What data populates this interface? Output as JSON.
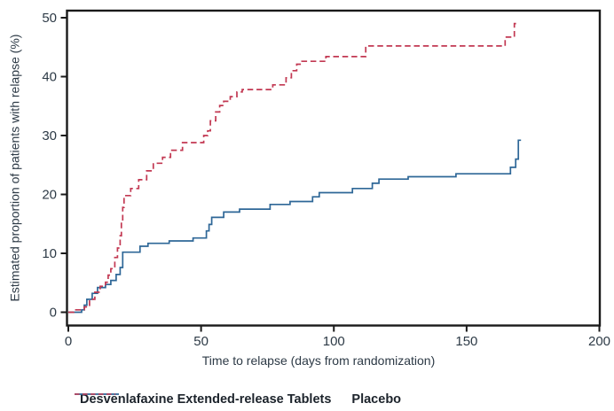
{
  "figure": {
    "y_axis_label": "Estimated proportion of patients with relapse (%)",
    "x_axis_label": "Time to relapse (days from randomization)",
    "legend": {
      "drug_label": "Desvenlafaxine Extended-release Tablets",
      "placebo_label": "Placebo"
    },
    "colors": {
      "drug_line": "#2e6797",
      "placebo_line": "#c23852",
      "frame": "#1a1a1a",
      "text": "#2d3a46"
    }
  },
  "chart_data": {
    "type": "line",
    "subtype": "kaplan-meier-step",
    "title": "",
    "xlabel": "Time to relapse (days from randomization)",
    "ylabel": "Estimated proportion of patients with relapse (%)",
    "xlim": [
      0,
      200
    ],
    "ylim": [
      0,
      50
    ],
    "x_ticks": [
      0,
      50,
      100,
      150,
      200
    ],
    "y_ticks": [
      0,
      10,
      20,
      30,
      40,
      50
    ],
    "grid": false,
    "legend_position": "bottom",
    "series": [
      {
        "name": "Desvenlafaxine Extended-release Tablets",
        "color": "#2e6797",
        "line_style": "solid",
        "end_day": 170.5,
        "points": [
          [
            0,
            0
          ],
          [
            5,
            0.4
          ],
          [
            6,
            1.2
          ],
          [
            7,
            2.2
          ],
          [
            9,
            3.2
          ],
          [
            11,
            4.2
          ],
          [
            14,
            4.7
          ],
          [
            16,
            5.4
          ],
          [
            18,
            6.4
          ],
          [
            19.5,
            7.6
          ],
          [
            20.5,
            10.2
          ],
          [
            27,
            11.2
          ],
          [
            30,
            11.7
          ],
          [
            38,
            12.1
          ],
          [
            47,
            12.6
          ],
          [
            52,
            13.8
          ],
          [
            53,
            14.9
          ],
          [
            54,
            16.1
          ],
          [
            58.5,
            17
          ],
          [
            64.5,
            17.5
          ],
          [
            76,
            18.3
          ],
          [
            83.5,
            18.8
          ],
          [
            92,
            19.6
          ],
          [
            94.5,
            20.3
          ],
          [
            107,
            21
          ],
          [
            114.5,
            21.9
          ],
          [
            117,
            22.6
          ],
          [
            128,
            23
          ],
          [
            146,
            23.5
          ],
          [
            166.5,
            24.6
          ],
          [
            168.5,
            26
          ],
          [
            169.5,
            29.2
          ]
        ]
      },
      {
        "name": "Placebo",
        "color": "#c23852",
        "line_style": "dashed",
        "end_day": 169,
        "points": [
          [
            0,
            0
          ],
          [
            2,
            0.4
          ],
          [
            6,
            0.9
          ],
          [
            8,
            2.2
          ],
          [
            10,
            3.4
          ],
          [
            12,
            4.4
          ],
          [
            14,
            5.1
          ],
          [
            15,
            6.3
          ],
          [
            16,
            7.4
          ],
          [
            17.5,
            9.3
          ],
          [
            18.5,
            10.9
          ],
          [
            19.5,
            13
          ],
          [
            20,
            15.5
          ],
          [
            20.5,
            17.8
          ],
          [
            21,
            19.8
          ],
          [
            23.5,
            21
          ],
          [
            26.5,
            22.5
          ],
          [
            29.5,
            24
          ],
          [
            32,
            25.3
          ],
          [
            35.5,
            26.3
          ],
          [
            38.5,
            27.5
          ],
          [
            43,
            28.8
          ],
          [
            51,
            30
          ],
          [
            52.5,
            30.8
          ],
          [
            53.5,
            32.5
          ],
          [
            55.5,
            34
          ],
          [
            57,
            35.1
          ],
          [
            58.5,
            35.8
          ],
          [
            61,
            36.6
          ],
          [
            63.5,
            37.4
          ],
          [
            65.5,
            37.8
          ],
          [
            77,
            38.6
          ],
          [
            82,
            39.8
          ],
          [
            84,
            41
          ],
          [
            86,
            42.1
          ],
          [
            88,
            42.6
          ],
          [
            97,
            43.4
          ],
          [
            112,
            45.2
          ],
          [
            164.5,
            46.7
          ],
          [
            168,
            49
          ]
        ]
      }
    ]
  }
}
